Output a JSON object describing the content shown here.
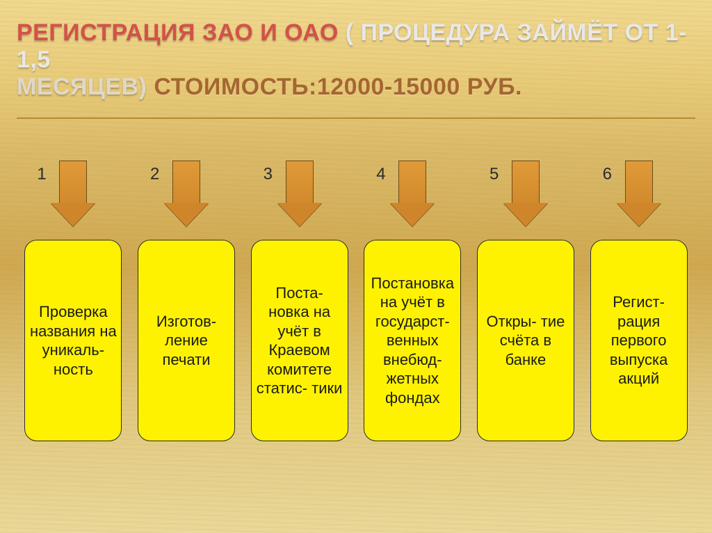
{
  "title": {
    "line1_accent": "Регистрация ЗАО и ОАО",
    "line1_rest": "( процедура займёт от 1- 1,5",
    "line2_sub": "месяцев)",
    "line2_cost": "стоимость:12000-15000 руб."
  },
  "steps": [
    {
      "num": "1",
      "text": "Проверка названия на уникаль-\nность"
    },
    {
      "num": "2",
      "text": "Изготов-\nление печати"
    },
    {
      "num": "3",
      "text": "Поста-\nновка на учёт в Краевом комитете статис-\nтики"
    },
    {
      "num": "4",
      "text": "Постановка на учёт в государст-\nвенных внебюд-\nжетных фондах"
    },
    {
      "num": "5",
      "text": "Откры-\nтие счёта в банке"
    },
    {
      "num": "6",
      "text": "Регист-\nрация первого выпуска акций"
    }
  ],
  "styling": {
    "slide_width": 1024,
    "slide_height": 767,
    "arrow_fill": "#d18a2c",
    "arrow_border": "#6e4a17",
    "card_fill": "#fff200",
    "card_border": "#2b2b2b",
    "card_radius": 18,
    "card_fontsize": 22,
    "title_fontsize": 34,
    "title_accent_color": "#d2524a",
    "title_light_color": "#e8e8e8",
    "title_cost_color": "#a56630",
    "background_gradient": [
      "#f0d990",
      "#e8cc7a",
      "#d9b968",
      "#cfa850",
      "#e0c880",
      "#ead99a"
    ],
    "divider_color": "#b58930",
    "num_label_fontsize": 24,
    "num_label_color": "#2b2b2b"
  }
}
